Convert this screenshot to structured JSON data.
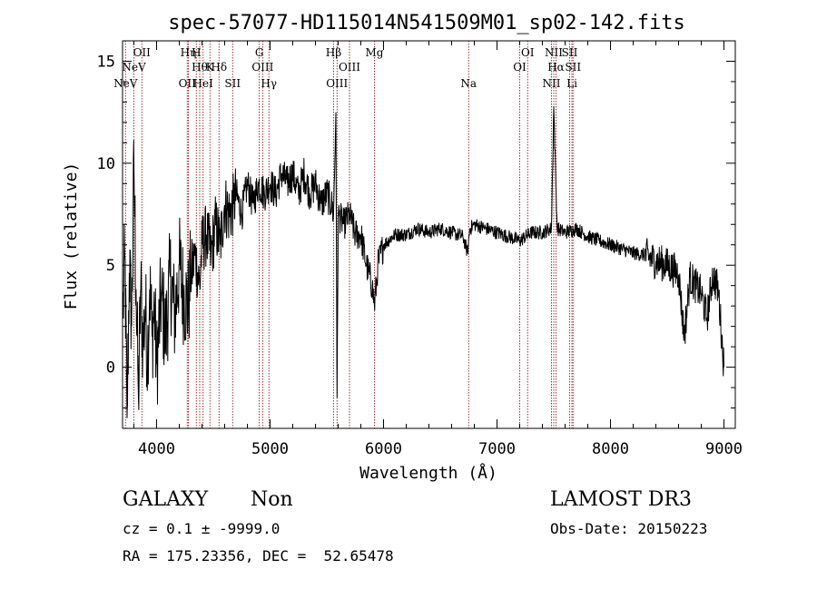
{
  "chart_data": {
    "type": "line",
    "title": "spec-57077-HD115014N541509M01_sp02-142.fits",
    "xlabel": "Wavelength (Å)",
    "ylabel": "Flux (relative)",
    "xlim": [
      3700,
      9100
    ],
    "ylim": [
      -3,
      16
    ],
    "xticks": [
      4000,
      5000,
      6000,
      7000,
      8000,
      9000
    ],
    "yticks": [
      0,
      5,
      10,
      15
    ],
    "line_color": "#000000",
    "marker_color": "#8b0000",
    "spectrum_anchors": [
      [
        3700,
        2.0
      ],
      [
        3720,
        5.5
      ],
      [
        3740,
        -2.5
      ],
      [
        3760,
        5.0
      ],
      [
        3780,
        2.0
      ],
      [
        3800,
        10.0
      ],
      [
        3820,
        3.5
      ],
      [
        3840,
        -1.5
      ],
      [
        3860,
        4.0
      ],
      [
        3880,
        1.0
      ],
      [
        3900,
        3.0
      ],
      [
        3920,
        0.5
      ],
      [
        3940,
        4.0
      ],
      [
        3960,
        1.5
      ],
      [
        3980,
        3.0
      ],
      [
        4000,
        0.0
      ],
      [
        4040,
        3.5
      ],
      [
        4080,
        1.5
      ],
      [
        4120,
        4.5
      ],
      [
        4160,
        2.5
      ],
      [
        4200,
        5.0
      ],
      [
        4240,
        3.5
      ],
      [
        4280,
        3.0
      ],
      [
        4300,
        4.5
      ],
      [
        4340,
        5.5
      ],
      [
        4380,
        4.0
      ],
      [
        4400,
        6.0
      ],
      [
        4440,
        6.5
      ],
      [
        4480,
        5.5
      ],
      [
        4520,
        7.0
      ],
      [
        4560,
        6.0
      ],
      [
        4600,
        8.0
      ],
      [
        4640,
        7.5
      ],
      [
        4680,
        8.0
      ],
      [
        4700,
        8.5
      ],
      [
        4750,
        7.5
      ],
      [
        4800,
        9.0
      ],
      [
        4850,
        8.0
      ],
      [
        4900,
        9.0
      ],
      [
        4950,
        8.5
      ],
      [
        5000,
        9.0
      ],
      [
        5050,
        8.5
      ],
      [
        5100,
        9.5
      ],
      [
        5150,
        9.0
      ],
      [
        5200,
        9.5
      ],
      [
        5250,
        8.5
      ],
      [
        5300,
        9.5
      ],
      [
        5350,
        8.5
      ],
      [
        5400,
        9.0
      ],
      [
        5450,
        8.0
      ],
      [
        5500,
        8.5
      ],
      [
        5540,
        8.0
      ],
      [
        5560,
        7.5
      ],
      [
        5580,
        12.5
      ],
      [
        5590,
        -1.5
      ],
      [
        5600,
        7.5
      ],
      [
        5650,
        7.0
      ],
      [
        5700,
        7.5
      ],
      [
        5750,
        6.5
      ],
      [
        5800,
        6.5
      ],
      [
        5850,
        5.0
      ],
      [
        5900,
        4.0
      ],
      [
        5920,
        3.0
      ],
      [
        5950,
        5.0
      ],
      [
        6000,
        6.0
      ],
      [
        6100,
        6.5
      ],
      [
        6200,
        6.5
      ],
      [
        6300,
        6.8
      ],
      [
        6400,
        6.6
      ],
      [
        6500,
        6.8
      ],
      [
        6600,
        6.6
      ],
      [
        6700,
        6.4
      ],
      [
        6740,
        5.6
      ],
      [
        6760,
        6.8
      ],
      [
        6800,
        7.0
      ],
      [
        6900,
        6.8
      ],
      [
        7000,
        6.6
      ],
      [
        7100,
        6.4
      ],
      [
        7200,
        6.2
      ],
      [
        7300,
        6.6
      ],
      [
        7400,
        6.6
      ],
      [
        7480,
        6.8
      ],
      [
        7500,
        12.8
      ],
      [
        7530,
        6.8
      ],
      [
        7600,
        6.6
      ],
      [
        7700,
        6.8
      ],
      [
        7800,
        6.4
      ],
      [
        7900,
        6.2
      ],
      [
        8000,
        6.0
      ],
      [
        8100,
        5.8
      ],
      [
        8200,
        5.6
      ],
      [
        8300,
        5.5
      ],
      [
        8400,
        5.2
      ],
      [
        8500,
        5.0
      ],
      [
        8600,
        4.6
      ],
      [
        8650,
        1.5
      ],
      [
        8700,
        4.4
      ],
      [
        8800,
        3.6
      ],
      [
        8850,
        2.4
      ],
      [
        8900,
        4.5
      ],
      [
        8950,
        3.8
      ],
      [
        9000,
        0.0
      ]
    ],
    "line_markers": [
      {
        "label": "NeV",
        "wavelength": 3726,
        "row": 2
      },
      {
        "label": "NeV",
        "wavelength": 3800,
        "row": 1
      },
      {
        "label": "OII",
        "wavelength": 3870,
        "row": 0
      },
      {
        "label": "OII",
        "wavelength": 4270,
        "row": 2
      },
      {
        "label": "Hη",
        "wavelength": 4280,
        "row": 0
      },
      {
        "label": "H",
        "wavelength": 4350,
        "row": 0
      },
      {
        "label": "Hθ",
        "wavelength": 4380,
        "row": 1
      },
      {
        "label": "HeI",
        "wavelength": 4410,
        "row": 2
      },
      {
        "label": "K",
        "wavelength": 4470,
        "row": 1
      },
      {
        "label": "Hδ",
        "wavelength": 4550,
        "row": 1
      },
      {
        "label": "SII",
        "wavelength": 4670,
        "row": 2
      },
      {
        "label": "G",
        "wavelength": 4905,
        "row": 0
      },
      {
        "label": "OIII",
        "wavelength": 4935,
        "row": 1
      },
      {
        "label": "Hγ",
        "wavelength": 4990,
        "row": 2
      },
      {
        "label": "Hβ",
        "wavelength": 5560,
        "row": 0
      },
      {
        "label": "OIII",
        "wavelength": 5590,
        "row": 2
      },
      {
        "label": "OIII",
        "wavelength": 5700,
        "row": 1
      },
      {
        "label": "Mg",
        "wavelength": 5920,
        "row": 0
      },
      {
        "label": "Na",
        "wavelength": 6750,
        "row": 2
      },
      {
        "label": "OI",
        "wavelength": 7200,
        "row": 1
      },
      {
        "label": "OI",
        "wavelength": 7270,
        "row": 0
      },
      {
        "label": "NII",
        "wavelength": 7480,
        "row": 2
      },
      {
        "label": "NII",
        "wavelength": 7500,
        "row": 0
      },
      {
        "label": "Hα",
        "wavelength": 7520,
        "row": 1
      },
      {
        "label": "SII",
        "wavelength": 7640,
        "row": 0
      },
      {
        "label": "SII",
        "wavelength": 7670,
        "row": 1
      },
      {
        "label": "Li",
        "wavelength": 7660,
        "row": 2
      }
    ]
  },
  "info": {
    "class": "GALAXY",
    "subclass": "Non",
    "survey": "LAMOST DR3",
    "cz_line": "cz = 0.1 ± -9999.0",
    "obs_date_line": "Obs-Date: 20150223",
    "coords_line": "RA = 175.23356, DEC =  52.65478"
  }
}
